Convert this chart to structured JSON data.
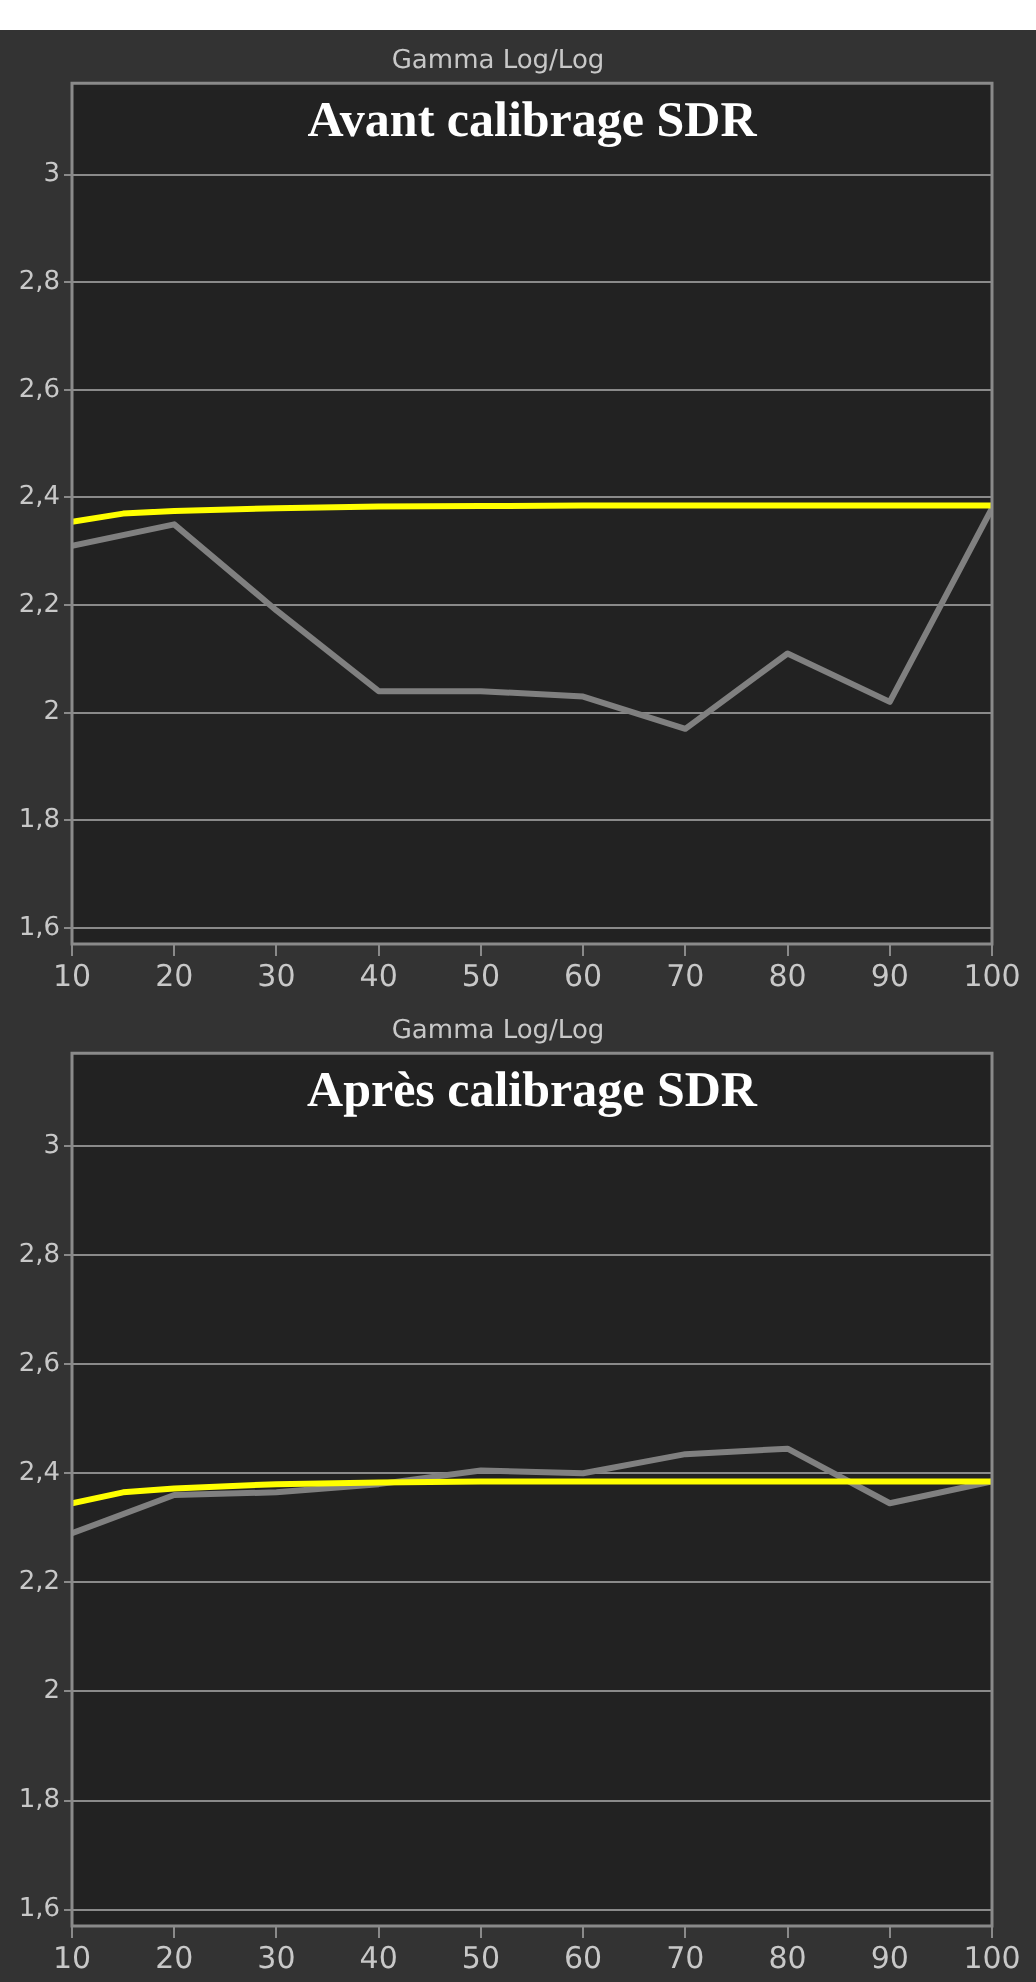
{
  "chart_data": [
    {
      "type": "line",
      "title": "Gamma Log/Log",
      "subtitle": "Avant calibrage SDR",
      "xlim": [
        10,
        100
      ],
      "xticks": [
        10,
        20,
        30,
        40,
        50,
        60,
        70,
        80,
        90,
        100
      ],
      "ylim": [
        1.57,
        3.17
      ],
      "yticks": [
        {
          "value": 1.6,
          "label": "1,6"
        },
        {
          "value": 1.8,
          "label": "1,8"
        },
        {
          "value": 2,
          "label": "2"
        },
        {
          "value": 2.2,
          "label": "2,2"
        },
        {
          "value": 2.4,
          "label": "2,4"
        },
        {
          "value": 2.6,
          "label": "2,6"
        },
        {
          "value": 2.8,
          "label": "2,8"
        },
        {
          "value": 3,
          "label": "3"
        }
      ],
      "grid": "y",
      "marker": "none",
      "line_style": "solid",
      "legend": false,
      "series": [
        {
          "color": "#ffff00",
          "x": [
            10,
            15,
            20,
            30,
            40,
            50,
            60,
            70,
            80,
            90,
            100
          ],
          "values": [
            2.355,
            2.37,
            2.375,
            2.38,
            2.383,
            2.384,
            2.385,
            2.385,
            2.385,
            2.385,
            2.385
          ]
        },
        {
          "color": "#808080",
          "x": [
            10,
            20,
            30,
            40,
            50,
            60,
            70,
            80,
            90,
            100
          ],
          "values": [
            2.31,
            2.35,
            2.19,
            2.04,
            2.04,
            2.03,
            1.97,
            2.11,
            2.02,
            2.38
          ]
        }
      ]
    },
    {
      "type": "line",
      "title": "Gamma Log/Log",
      "subtitle": "Après calibrage SDR",
      "xlim": [
        10,
        100
      ],
      "xticks": [
        10,
        20,
        30,
        40,
        50,
        60,
        70,
        80,
        90,
        100
      ],
      "ylim": [
        1.57,
        3.17
      ],
      "yticks": [
        {
          "value": 1.6,
          "label": "1,6"
        },
        {
          "value": 1.8,
          "label": "1,8"
        },
        {
          "value": 2,
          "label": "2"
        },
        {
          "value": 2.2,
          "label": "2,2"
        },
        {
          "value": 2.4,
          "label": "2,4"
        },
        {
          "value": 2.6,
          "label": "2,6"
        },
        {
          "value": 2.8,
          "label": "2,8"
        },
        {
          "value": 3,
          "label": "3"
        }
      ],
      "grid": "y",
      "marker": "none",
      "line_style": "solid",
      "legend": false,
      "series": [
        {
          "color": "#ffff00",
          "x": [
            10,
            15,
            20,
            30,
            40,
            50,
            60,
            70,
            80,
            90,
            100
          ],
          "values": [
            2.345,
            2.365,
            2.372,
            2.38,
            2.383,
            2.385,
            2.385,
            2.385,
            2.385,
            2.385,
            2.385
          ]
        },
        {
          "color": "#808080",
          "x": [
            10,
            20,
            30,
            40,
            50,
            60,
            70,
            80,
            90,
            100
          ],
          "values": [
            2.29,
            2.36,
            2.365,
            2.38,
            2.405,
            2.4,
            2.435,
            2.445,
            2.345,
            2.385
          ]
        }
      ]
    }
  ]
}
